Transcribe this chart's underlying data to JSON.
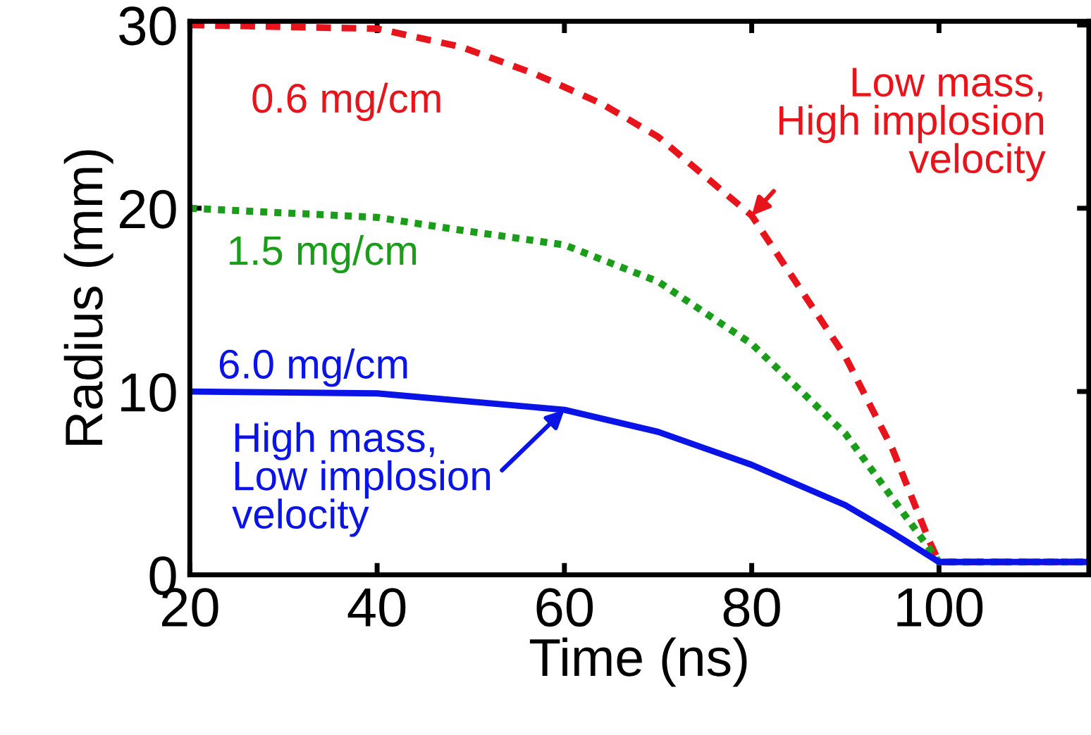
{
  "chart_data": {
    "type": "line",
    "xlabel": "Time (ns)",
    "ylabel": "Radius (mm)",
    "xlim": [
      20,
      116
    ],
    "ylim": [
      0,
      30.2
    ],
    "xticks": [
      20,
      40,
      60,
      80,
      100
    ],
    "yticks": [
      0,
      10,
      20,
      30
    ],
    "grid": false,
    "series": [
      {
        "name": "0.6 mg/cm",
        "color": "#e8141c",
        "line_style": "dashed",
        "x": [
          20,
          40,
          49,
          57,
          64,
          70,
          80,
          90,
          95,
          99,
          100,
          116
        ],
        "values": [
          30.0,
          29.8,
          28.8,
          27.3,
          25.7,
          23.9,
          19.6,
          11.9,
          6.9,
          1.8,
          0.7,
          0.7
        ]
      },
      {
        "name": "1.5 mg/cm",
        "color": "#1a9e1a",
        "line_style": "dotted",
        "x": [
          20,
          40,
          49,
          60,
          70,
          80,
          90,
          95,
          100,
          116
        ],
        "values": [
          20.0,
          19.5,
          18.8,
          18.0,
          16.0,
          12.6,
          7.7,
          4.2,
          0.7,
          0.7
        ]
      },
      {
        "name": "6.0 mg/cm",
        "color": "#0a14e6",
        "line_style": "solid",
        "x": [
          20,
          40,
          60,
          70,
          80,
          90,
          95,
          100,
          116
        ],
        "values": [
          10.0,
          9.9,
          9.0,
          7.8,
          6.0,
          3.8,
          2.3,
          0.7,
          0.7
        ]
      }
    ],
    "annotations": [
      {
        "text": "Low mass,\nHigh implosion\nvelocity",
        "x": 80,
        "y": 19.6
      },
      {
        "text": "High mass,\nLow implosion\nvelocity",
        "x": 60,
        "y": 9.0
      }
    ]
  }
}
